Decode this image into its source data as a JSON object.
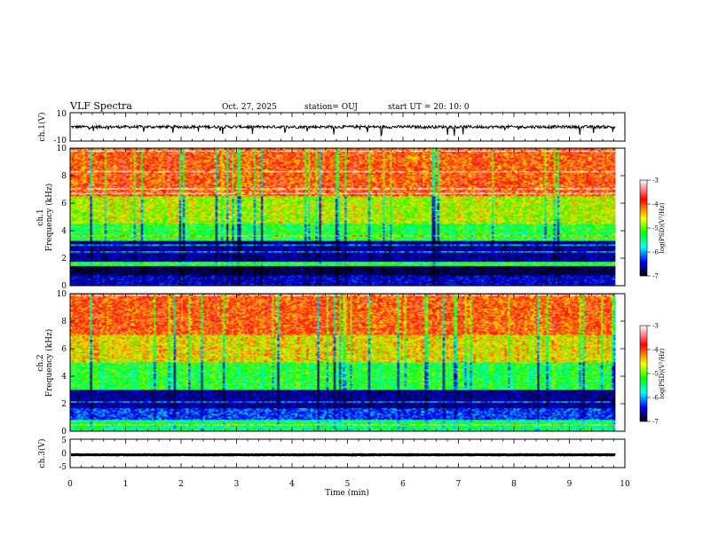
{
  "header": {
    "title": "VLF Spectra",
    "date": "Oct. 27, 2025",
    "station": "station= OUJ",
    "start_ut": "start  UT =   20: 10: 0"
  },
  "chart_data": [
    {
      "type": "line",
      "id": "ch1-waveform",
      "ylabel": "ch.1(V)",
      "ylim": [
        -10,
        10
      ],
      "ytick_labels": [
        "10",
        "-10"
      ],
      "xlim": [
        0,
        10
      ],
      "mean_value": 0,
      "noise_amplitude": 2
    },
    {
      "type": "heatmap",
      "id": "ch1-spectrogram",
      "ylabel_channel": "ch.1",
      "ylabel": "Frequency  (kHz)",
      "ylim": [
        0,
        10
      ],
      "ytick_labels": [
        "0",
        "2",
        "4",
        "6",
        "8",
        "10"
      ],
      "xlim": [
        0,
        10
      ],
      "data_end_min": 9.83,
      "colorbar": {
        "label": "log(PSD)(V²/Hz)",
        "range": [
          -7,
          -3
        ],
        "tick_labels": [
          "-3",
          "-4",
          "-5",
          "-6",
          "-7"
        ],
        "colormap": [
          "#ffffff",
          "#ff0000",
          "#ffff00",
          "#00ff00",
          "#00ffff",
          "#0000ff",
          "#000080",
          "#000000"
        ]
      },
      "bands_khz": [
        {
          "from": 0.0,
          "to": 0.7,
          "level": -6.3
        },
        {
          "from": 0.7,
          "to": 1.4,
          "level": -6.8
        },
        {
          "from": 1.4,
          "to": 1.7,
          "level": -5.0
        },
        {
          "from": 1.7,
          "to": 3.2,
          "level": -6.5
        },
        {
          "from": 3.2,
          "to": 4.5,
          "level": -5.0
        },
        {
          "from": 4.5,
          "to": 6.5,
          "level": -4.5
        },
        {
          "from": 6.5,
          "to": 10.0,
          "level": -3.8
        }
      ]
    },
    {
      "type": "heatmap",
      "id": "ch2-spectrogram",
      "ylabel_channel": "ch.2",
      "ylabel": "Frequency  (kHz)",
      "ylim": [
        0,
        10
      ],
      "ytick_labels": [
        "0",
        "2",
        "4",
        "6",
        "8",
        "10"
      ],
      "xlim": [
        0,
        10
      ],
      "data_end_min": 9.83,
      "colorbar": {
        "label": "log(PSD)(V²/Hz)",
        "range": [
          -7,
          -3
        ],
        "tick_labels": [
          "-3",
          "-4",
          "-5",
          "-6",
          "-7"
        ],
        "colormap": [
          "#ffffff",
          "#ff0000",
          "#ffff00",
          "#00ff00",
          "#00ffff",
          "#0000ff",
          "#000080",
          "#000000"
        ]
      },
      "bands_khz": [
        {
          "from": 0.0,
          "to": 0.8,
          "level": -5.2
        },
        {
          "from": 0.8,
          "to": 1.6,
          "level": -6.0
        },
        {
          "from": 1.6,
          "to": 3.0,
          "level": -6.5
        },
        {
          "from": 3.0,
          "to": 5.0,
          "level": -5.0
        },
        {
          "from": 5.0,
          "to": 7.0,
          "level": -4.3
        },
        {
          "from": 7.0,
          "to": 10.0,
          "level": -3.8
        }
      ]
    },
    {
      "type": "line",
      "id": "ch3-waveform",
      "ylabel": "ch.3(V)",
      "ylim": [
        -5,
        5
      ],
      "ytick_labels": [
        "5",
        "0",
        "-5"
      ],
      "xlim": [
        0,
        10
      ],
      "mean_value": -0.5,
      "noise_amplitude": 0.2
    }
  ],
  "x_axis": {
    "label": "Time  (min)",
    "ticks": [
      "0",
      "1",
      "2",
      "3",
      "4",
      "5",
      "6",
      "7",
      "8",
      "9",
      "10"
    ]
  }
}
